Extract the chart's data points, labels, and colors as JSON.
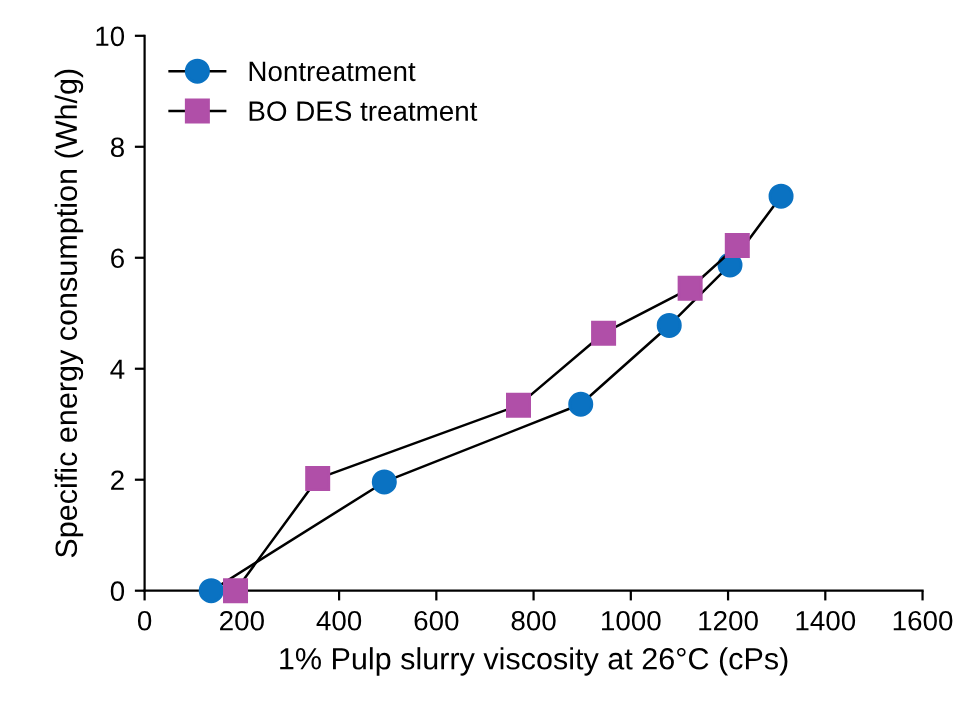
{
  "chart_data": {
    "type": "line",
    "xlabel": "1% Pulp slurry viscosity at 26°C (cPs)",
    "ylabel": "Specific energy consumption (Wh/g)",
    "series": [
      {
        "name": "Nontreatment",
        "color": "#0a72c2",
        "marker": "circle",
        "x": [
          137,
          493,
          897,
          1079,
          1204,
          1309
        ],
        "values": [
          0,
          1.96,
          3.36,
          4.78,
          5.87,
          7.11
        ]
      },
      {
        "name": "BO DES treatment",
        "color": "#b04fa8",
        "marker": "square",
        "x": [
          187,
          356,
          769,
          944,
          1122,
          1219
        ],
        "values": [
          0,
          2.02,
          3.34,
          4.64,
          5.45,
          6.22
        ]
      }
    ],
    "xlim": [
      0,
      1600
    ],
    "xticks": [
      0,
      200,
      400,
      600,
      800,
      1000,
      1200,
      1400,
      1600
    ],
    "ylim": [
      0,
      10
    ],
    "yticks": [
      0,
      2,
      4,
      6,
      8,
      10
    ],
    "grid": false,
    "legend": "top left",
    "line_style": "solid"
  }
}
